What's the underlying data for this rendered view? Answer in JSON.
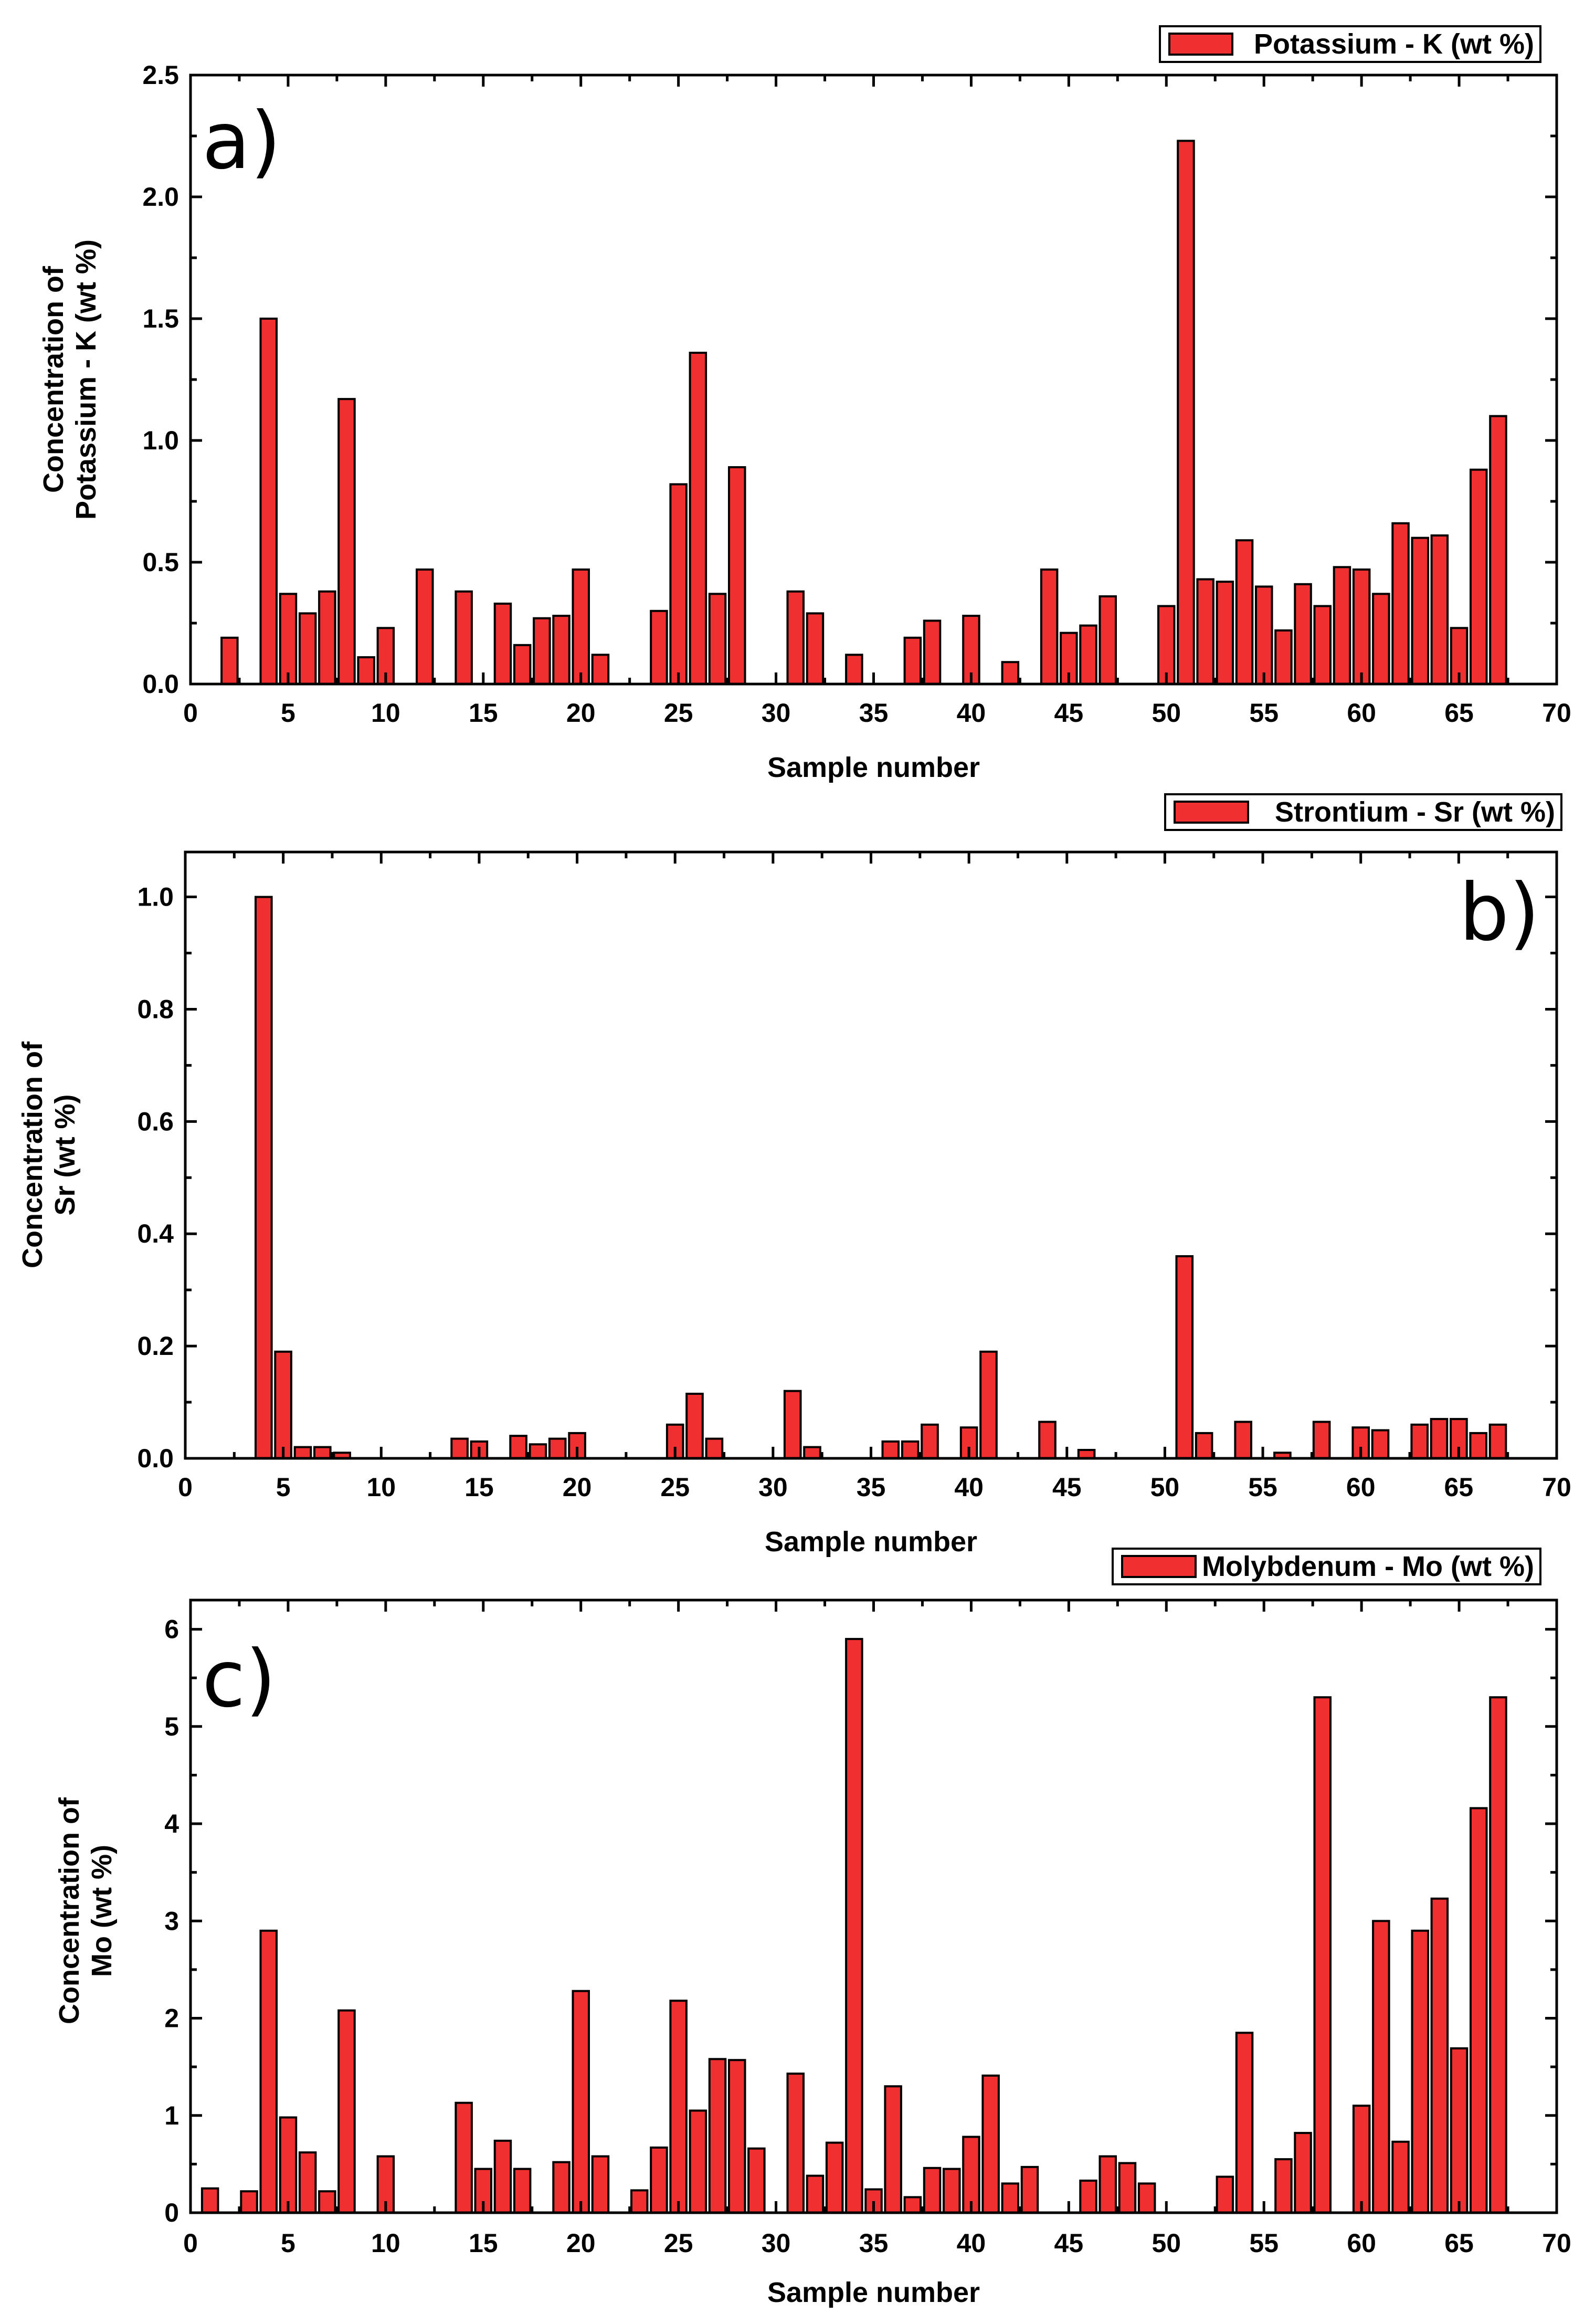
{
  "chart_data": [
    {
      "type": "bar",
      "panel_label": "a)",
      "xlabel": "Sample number",
      "ylabel": [
        "Concentration of",
        "Potassium - K (wt %)"
      ],
      "legend": "Potassium - K (wt %)",
      "legend_position": "top-right",
      "xlim": [
        0,
        70
      ],
      "ylim": [
        0,
        2.5
      ],
      "xticks": [
        0,
        5,
        10,
        15,
        20,
        25,
        30,
        35,
        40,
        45,
        50,
        55,
        60,
        65,
        70
      ],
      "yticks": [
        0.0,
        0.5,
        1.0,
        1.5,
        2.0,
        2.5
      ],
      "ytick_labels": [
        "0.0",
        "0.5",
        "1.0",
        "1.5",
        "2.0",
        "2.5"
      ],
      "bar_color": "#f03030",
      "x": [
        2,
        4,
        5,
        6,
        7,
        8,
        9,
        10,
        12,
        14,
        16,
        17,
        18,
        19,
        20,
        21,
        24,
        25,
        26,
        27,
        28,
        31,
        32,
        34,
        37,
        38,
        40,
        42,
        44,
        45,
        46,
        47,
        50,
        51,
        52,
        53,
        54,
        55,
        56,
        57,
        58,
        59,
        60,
        61,
        62,
        63,
        64,
        65,
        66,
        67
      ],
      "values": [
        0.19,
        1.5,
        0.37,
        0.29,
        0.38,
        1.17,
        0.11,
        0.23,
        0.47,
        0.38,
        0.33,
        0.16,
        0.27,
        0.28,
        0.47,
        0.12,
        0.3,
        0.82,
        1.36,
        0.37,
        0.89,
        0.38,
        0.29,
        0.12,
        0.19,
        0.26,
        0.28,
        0.09,
        0.47,
        0.21,
        0.24,
        0.36,
        0.32,
        2.23,
        0.43,
        0.42,
        0.59,
        0.4,
        0.22,
        0.41,
        0.32,
        0.48,
        0.47,
        0.37,
        0.66,
        0.6,
        0.61,
        0.23,
        0.88,
        1.1
      ]
    },
    {
      "type": "bar",
      "panel_label": "b)",
      "xlabel": "Sample number",
      "ylabel": [
        "Concentration of",
        "Sr  (wt %)"
      ],
      "legend": "Strontium - Sr (wt %)",
      "legend_position": "top-right",
      "xlim": [
        0,
        70
      ],
      "ylim": [
        0,
        1.08
      ],
      "xticks": [
        0,
        5,
        10,
        15,
        20,
        25,
        30,
        35,
        40,
        45,
        50,
        55,
        60,
        65,
        70
      ],
      "yticks": [
        0.0,
        0.2,
        0.4,
        0.6,
        0.8,
        1.0
      ],
      "ytick_labels": [
        "0.0",
        "0.2",
        "0.4",
        "0.6",
        "0.8",
        "1.0"
      ],
      "bar_color": "#f03030",
      "x": [
        4,
        5,
        6,
        7,
        8,
        14,
        15,
        17,
        18,
        19,
        20,
        25,
        26,
        27,
        31,
        32,
        36,
        37,
        38,
        40,
        41,
        44,
        46,
        51,
        52,
        54,
        56,
        58,
        60,
        61,
        63,
        64,
        65,
        66,
        67
      ],
      "values": [
        1.0,
        0.19,
        0.02,
        0.02,
        0.01,
        0.035,
        0.03,
        0.04,
        0.025,
        0.035,
        0.045,
        0.06,
        0.115,
        0.035,
        0.12,
        0.02,
        0.03,
        0.03,
        0.06,
        0.055,
        0.19,
        0.065,
        0.015,
        0.36,
        0.045,
        0.065,
        0.01,
        0.065,
        0.055,
        0.05,
        0.06,
        0.07,
        0.07,
        0.045,
        0.06
      ]
    },
    {
      "type": "bar",
      "panel_label": "c)",
      "xlabel": "Sample number",
      "ylabel": [
        "Concentration of",
        "Mo  (wt %)"
      ],
      "legend": "Molybdenum - Mo (wt %)",
      "legend_position": "top-right",
      "xlim": [
        0,
        70
      ],
      "ylim": [
        0,
        6.3
      ],
      "xticks": [
        0,
        5,
        10,
        15,
        20,
        25,
        30,
        35,
        40,
        45,
        50,
        55,
        60,
        65,
        70
      ],
      "yticks": [
        0,
        1,
        2,
        3,
        4,
        5,
        6
      ],
      "ytick_labels": [
        "0",
        "1",
        "2",
        "3",
        "4",
        "5",
        "6"
      ],
      "bar_color": "#f03030",
      "x": [
        1,
        3,
        4,
        5,
        6,
        7,
        8,
        10,
        14,
        15,
        16,
        17,
        19,
        20,
        21,
        23,
        24,
        25,
        26,
        27,
        28,
        29,
        31,
        32,
        33,
        34,
        35,
        36,
        37,
        38,
        39,
        40,
        41,
        42,
        43,
        46,
        47,
        48,
        49,
        53,
        54,
        56,
        57,
        58,
        60,
        61,
        62,
        63,
        64,
        65,
        66,
        67
      ],
      "values": [
        0.25,
        0.22,
        2.9,
        0.98,
        0.62,
        0.22,
        2.08,
        0.58,
        1.13,
        0.45,
        0.74,
        0.45,
        0.52,
        2.28,
        0.58,
        0.23,
        0.67,
        2.18,
        1.05,
        1.58,
        1.57,
        0.66,
        1.43,
        0.38,
        0.72,
        5.9,
        0.24,
        1.3,
        0.16,
        0.46,
        0.45,
        0.78,
        1.41,
        0.3,
        0.47,
        0.33,
        0.58,
        0.51,
        0.3,
        0.37,
        1.85,
        0.55,
        0.82,
        5.3,
        1.1,
        3.0,
        0.73,
        2.9,
        3.23,
        1.69,
        4.16,
        5.3
      ]
    }
  ]
}
